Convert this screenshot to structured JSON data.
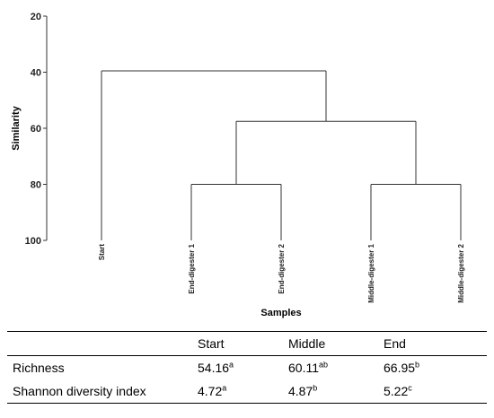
{
  "chart_data": {
    "type": "dendrogram",
    "ylabel": "Similarity",
    "xlabel": "Samples",
    "ylim": [
      20,
      100
    ],
    "yticks": [
      20,
      40,
      60,
      80,
      100
    ],
    "y_inverted": true,
    "leaves": [
      "Start",
      "End-digester 1",
      "End-digester 2",
      "Middle-digester 1",
      "Middle-digester 2"
    ],
    "merges": [
      {
        "left": "End-digester 1",
        "right": "End-digester 2",
        "similarity": 80
      },
      {
        "left": "Middle-digester 1",
        "right": "Middle-digester 2",
        "similarity": 80
      },
      {
        "left": "End cluster",
        "right": "Middle cluster",
        "similarity": 57.5
      },
      {
        "left": "Start",
        "right": "All digesters",
        "similarity": 39.5
      }
    ]
  },
  "table": {
    "headers": [
      "",
      "Start",
      "Middle",
      "End"
    ],
    "rows": [
      {
        "label": "Richness",
        "cells": [
          {
            "value": "54.16",
            "sup": "a"
          },
          {
            "value": "60.11",
            "sup": "ab"
          },
          {
            "value": "66.95",
            "sup": "b"
          }
        ]
      },
      {
        "label": "Shannon diversity index",
        "cells": [
          {
            "value": "4.72",
            "sup": "a"
          },
          {
            "value": "4.87",
            "sup": "b"
          },
          {
            "value": "5.22",
            "sup": "c"
          }
        ]
      }
    ]
  },
  "colors": {
    "lines": "#333333",
    "text": "#000000"
  }
}
